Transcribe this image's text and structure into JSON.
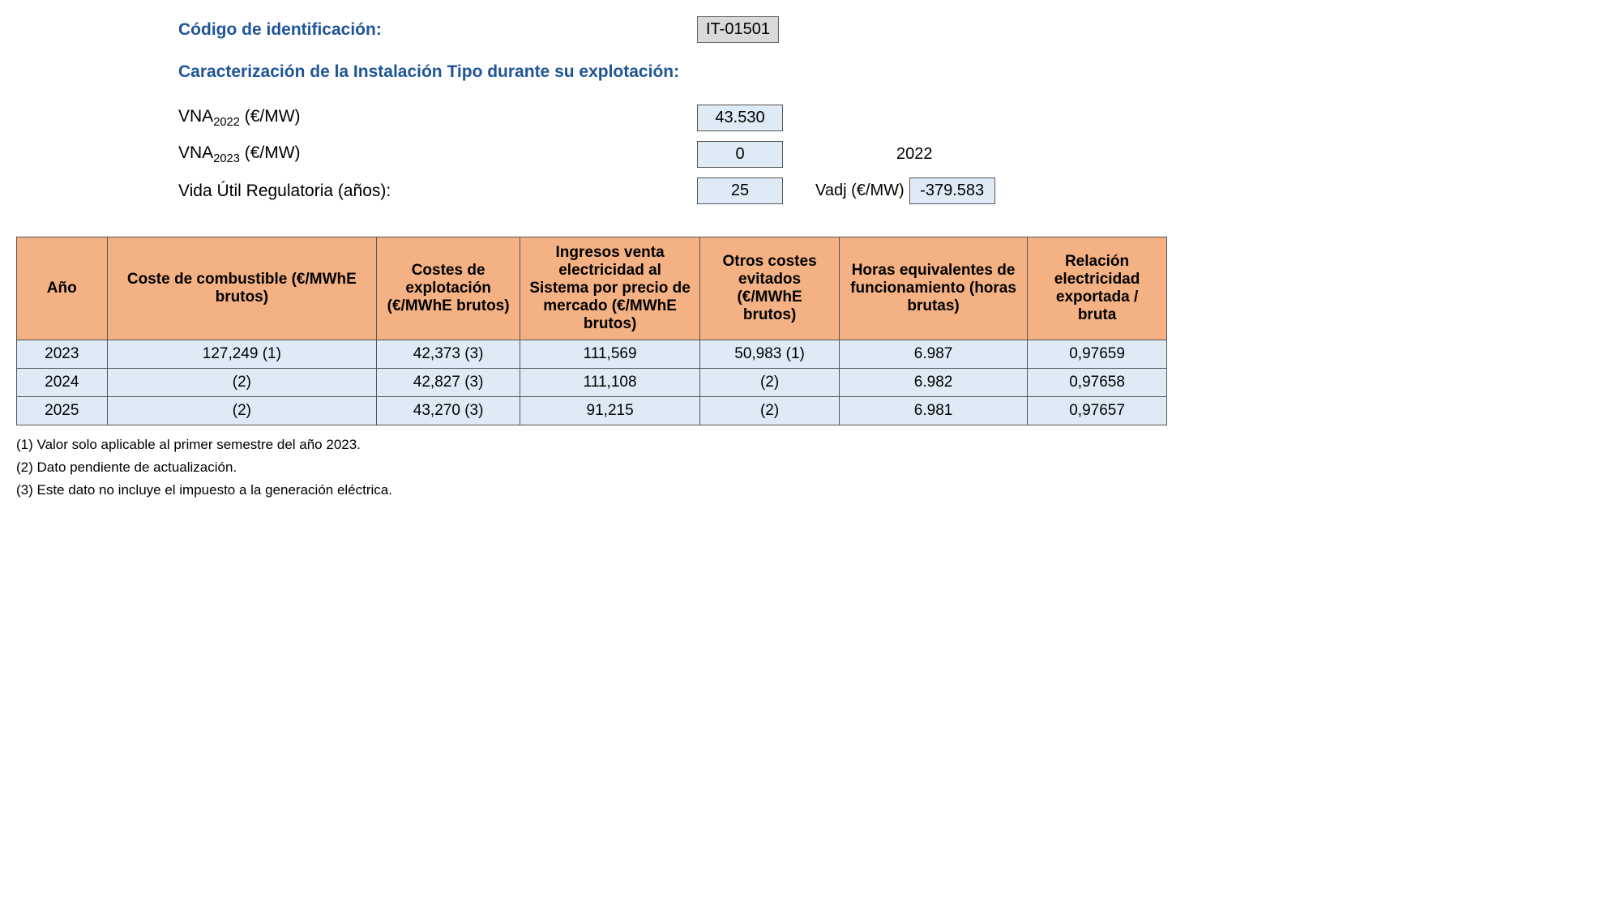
{
  "header": {
    "id_label": "Código de identificación:",
    "id_value": "IT-01501",
    "section_title": "Caracterización de la Instalación Tipo durante su explotación:",
    "vna2022_label_prefix": "VNA",
    "vna2022_sub": "2022",
    "vna2022_unit": " (€/MW)",
    "vna2022_value": "43.530",
    "vna2023_label_prefix": "VNA",
    "vna2023_sub": "2023",
    "vna2023_unit": " (€/MW)",
    "vna2023_value": "0",
    "year_value": "2022",
    "vida_label": "Vida Útil Regulatoria (años):",
    "vida_value": "25",
    "vadj_label": "Vadj (€/MW)",
    "vadj_value": "-379.583"
  },
  "table": {
    "columns": [
      "Año",
      "Coste de combustible (€/MWhE brutos)",
      "Costes de explotación (€/MWhE brutos)",
      "Ingresos venta electricidad al Sistema por precio de mercado (€/MWhE brutos)",
      "Otros costes evitados (€/MWhE brutos)",
      "Horas equivalentes de funcionamiento (horas brutas)",
      "Relación electricidad exportada / bruta"
    ],
    "rows": [
      [
        "2023",
        "127,249 (1)",
        "42,373 (3)",
        "111,569",
        "50,983 (1)",
        "6.987",
        "0,97659"
      ],
      [
        "2024",
        "(2)",
        "42,827 (3)",
        "111,108",
        "(2)",
        "6.982",
        "0,97658"
      ],
      [
        "2025",
        "(2)",
        "43,270 (3)",
        "91,215",
        "(2)",
        "6.981",
        "0,97657"
      ]
    ]
  },
  "footnotes": {
    "f1": "(1) Valor solo aplicable al primer semestre del año 2023.",
    "f2": "(2) Dato pendiente de actualización.",
    "f3": "(3) Este dato no incluye el impuesto a la generación eléctrica."
  },
  "style": {
    "header_color": "#1f5597",
    "th_bg": "#f4b183",
    "td_bg": "#deebf7",
    "code_bg": "#d9d9d9",
    "border_color": "#555555",
    "page_bg": "#ffffff"
  }
}
